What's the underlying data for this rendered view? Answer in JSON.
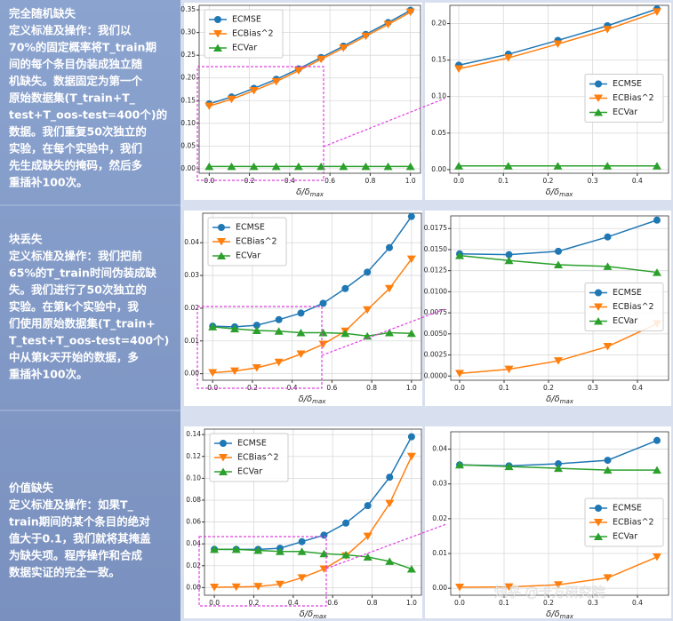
{
  "sections": [
    {
      "title": "完全随机缺失",
      "lines": [
        "定义标准及操作：我们以",
        "70%的固定概率将T_train期",
        "间的每个条目伪装成独立随",
        "机缺失。数据固定为第一个",
        "原始数据集(T_train+T_",
        "test+T_oos-test=400个)的",
        "数据。我们重复50次独立的",
        "实验，在每个实验中，我们",
        "先生成缺失的掩码，然后多",
        "重插补100次。"
      ]
    },
    {
      "title": "块丢失",
      "lines": [
        "定义标准及操作：我们把前",
        "65%的T_train时间伪装成缺",
        "失。我们进行了50次独立的",
        "实验。在第k个实验中，我",
        "们使用原始数据集(T_train+",
        "T_test+T_oos-test=400个)",
        "中从第k天开始的数据，多",
        "重插补100次。"
      ]
    },
    {
      "title": "价值缺失",
      "lines": [
        "定义标准及操作：如果T_",
        "train期间的某个条目的绝对",
        "值大于0.1，我们就将其掩盖",
        "为缺失项。程序操作和合成",
        "数据实证的完全一致。"
      ]
    }
  ],
  "watermark": "知乎 @卡方研究院",
  "chart_data": [
    {
      "type": "line",
      "x_label": "δ/δ",
      "x_label_sub": "max",
      "legend": "upper left",
      "grid": true,
      "x": [
        0,
        0.111,
        0.222,
        0.333,
        0.444,
        0.556,
        0.667,
        0.778,
        0.889,
        1.0
      ],
      "xlim": [
        -0.05,
        1.05
      ],
      "xticks": [
        {
          "value": 0,
          "label": "0.0"
        },
        0.2,
        0.4,
        0.6,
        0.8,
        {
          "value": 1,
          "label": "1.0"
        }
      ],
      "ylim": [
        -0.01,
        0.36
      ],
      "yticks": [
        {
          "value": 0,
          "label": "0.00"
        },
        0.05,
        {
          "value": 0.1,
          "label": "0.10"
        },
        0.15,
        {
          "value": 0.2,
          "label": "0.20"
        },
        0.25,
        {
          "value": 0.3,
          "label": "0.30"
        },
        0.35
      ],
      "series": [
        {
          "name": "ECMSE",
          "color": "#1f77b4",
          "marker": "circle",
          "values": [
            0.143,
            0.158,
            0.177,
            0.197,
            0.22,
            0.245,
            0.27,
            0.296,
            0.322,
            0.349
          ]
        },
        {
          "name": "ECBias^2",
          "color": "#ff7f0e",
          "marker": "triangle-down",
          "values": [
            0.138,
            0.153,
            0.172,
            0.192,
            0.216,
            0.241,
            0.266,
            0.292,
            0.318,
            0.345
          ]
        },
        {
          "name": "ECVar",
          "color": "#2ca02c",
          "marker": "triangle-up",
          "values": [
            0.005,
            0.005,
            0.005,
            0.005,
            0.005,
            0.005,
            0.005,
            0.005,
            0.005,
            0.005
          ]
        }
      ]
    },
    {
      "type": "line",
      "x_label": "δ/δ",
      "x_label_sub": "max",
      "legend": "center right",
      "grid": true,
      "x": [
        0,
        0.111,
        0.222,
        0.333,
        0.444
      ],
      "xlim": [
        -0.02,
        0.47
      ],
      "xticks": [
        {
          "value": 0,
          "label": "0.0"
        },
        0.1,
        0.2,
        0.3,
        0.4
      ],
      "ylim": [
        -0.005,
        0.225
      ],
      "yticks": [
        {
          "value": 0,
          "label": "0.00"
        },
        0.05,
        {
          "value": 0.1,
          "label": "0.10"
        },
        0.15,
        {
          "value": 0.2,
          "label": "0.20"
        }
      ],
      "series": [
        {
          "name": "ECMSE",
          "color": "#1f77b4",
          "marker": "circle",
          "values": [
            0.143,
            0.158,
            0.177,
            0.197,
            0.22
          ]
        },
        {
          "name": "ECBias^2",
          "color": "#ff7f0e",
          "marker": "triangle-down",
          "values": [
            0.138,
            0.153,
            0.172,
            0.192,
            0.216
          ]
        },
        {
          "name": "ECVar",
          "color": "#2ca02c",
          "marker": "triangle-up",
          "values": [
            0.005,
            0.005,
            0.005,
            0.005,
            0.005
          ]
        }
      ]
    },
    {
      "type": "line",
      "x_label": "δ/δ",
      "x_label_sub": "max",
      "legend": "upper left",
      "grid": true,
      "x": [
        0,
        0.111,
        0.222,
        0.333,
        0.444,
        0.556,
        0.667,
        0.778,
        0.889,
        1.0
      ],
      "xlim": [
        -0.05,
        1.05
      ],
      "xticks": [
        {
          "value": 0,
          "label": "0.0"
        },
        0.2,
        0.4,
        0.6,
        0.8,
        {
          "value": 1,
          "label": "1.0"
        }
      ],
      "ylim": [
        -0.002,
        0.049
      ],
      "yticks": [
        {
          "value": 0,
          "label": "0.00"
        },
        {
          "value": 0.01,
          "label": "0.01"
        },
        {
          "value": 0.02,
          "label": "0.02"
        },
        {
          "value": 0.03,
          "label": "0.03"
        },
        {
          "value": 0.04,
          "label": "0.04"
        }
      ],
      "series": [
        {
          "name": "ECMSE",
          "color": "#1f77b4",
          "marker": "circle",
          "values": [
            0.0145,
            0.0143,
            0.0148,
            0.0165,
            0.0185,
            0.0215,
            0.026,
            0.031,
            0.0385,
            0.048
          ]
        },
        {
          "name": "ECBias^2",
          "color": "#ff7f0e",
          "marker": "triangle-down",
          "values": [
            0.0003,
            0.0008,
            0.0018,
            0.0035,
            0.006,
            0.009,
            0.013,
            0.0195,
            0.026,
            0.035
          ]
        },
        {
          "name": "ECVar",
          "color": "#2ca02c",
          "marker": "triangle-up",
          "values": [
            0.0143,
            0.0137,
            0.0132,
            0.013,
            0.0125,
            0.0125,
            0.0123,
            0.0115,
            0.0125,
            0.0123
          ]
        }
      ]
    },
    {
      "type": "line",
      "x_label": "δ/δ",
      "x_label_sub": "max",
      "legend": "center right",
      "grid": true,
      "x": [
        0,
        0.111,
        0.222,
        0.333,
        0.444
      ],
      "xlim": [
        -0.02,
        0.47
      ],
      "xticks": [
        {
          "value": 0,
          "label": "0.0"
        },
        0.1,
        0.2,
        0.3,
        0.4
      ],
      "ylim": [
        -0.0005,
        0.019
      ],
      "yticks": [
        {
          "value": 0,
          "label": "0.0000"
        },
        0.0025,
        {
          "value": 0.005,
          "label": "0.0050"
        },
        0.0075,
        {
          "value": 0.01,
          "label": "0.0100"
        },
        0.0125,
        {
          "value": 0.015,
          "label": "0.0150"
        },
        0.0175
      ],
      "series": [
        {
          "name": "ECMSE",
          "color": "#1f77b4",
          "marker": "circle",
          "values": [
            0.0145,
            0.0144,
            0.0148,
            0.0165,
            0.0185
          ]
        },
        {
          "name": "ECBias^2",
          "color": "#ff7f0e",
          "marker": "triangle-down",
          "values": [
            0.0003,
            0.0008,
            0.0018,
            0.0035,
            0.0062
          ]
        },
        {
          "name": "ECVar",
          "color": "#2ca02c",
          "marker": "triangle-up",
          "values": [
            0.0143,
            0.0137,
            0.0132,
            0.013,
            0.0123
          ]
        }
      ]
    },
    {
      "type": "line",
      "x_label": "δ/δ",
      "x_label_sub": "max",
      "legend": "upper left",
      "grid": true,
      "x": [
        0,
        0.111,
        0.222,
        0.333,
        0.444,
        0.556,
        0.667,
        0.778,
        0.889,
        1.0
      ],
      "xlim": [
        -0.05,
        1.05
      ],
      "xticks": [
        {
          "value": 0,
          "label": "0.0"
        },
        0.2,
        0.4,
        0.6,
        0.8,
        {
          "value": 1,
          "label": "1.0"
        }
      ],
      "ylim": [
        -0.007,
        0.145
      ],
      "yticks": [
        {
          "value": 0,
          "label": "0.00"
        },
        0.02,
        0.04,
        0.06,
        0.08,
        {
          "value": 0.1,
          "label": "0.10"
        },
        0.12,
        0.14
      ],
      "series": [
        {
          "name": "ECMSE",
          "color": "#1f77b4",
          "marker": "circle",
          "values": [
            0.035,
            0.035,
            0.035,
            0.036,
            0.042,
            0.048,
            0.059,
            0.075,
            0.101,
            0.138
          ]
        },
        {
          "name": "ECBias^2",
          "color": "#ff7f0e",
          "marker": "triangle-down",
          "values": [
            0.0003,
            0.0005,
            0.001,
            0.003,
            0.009,
            0.017,
            0.029,
            0.047,
            0.077,
            0.12
          ]
        },
        {
          "name": "ECVar",
          "color": "#2ca02c",
          "marker": "triangle-up",
          "values": [
            0.035,
            0.035,
            0.034,
            0.033,
            0.033,
            0.031,
            0.03,
            0.028,
            0.024,
            0.017
          ]
        }
      ]
    },
    {
      "type": "line",
      "x_label": "δ/δ",
      "x_label_sub": "max",
      "legend": "center right",
      "grid": true,
      "x": [
        0,
        0.111,
        0.222,
        0.333,
        0.444
      ],
      "xlim": [
        -0.02,
        0.47
      ],
      "xticks": [
        {
          "value": 0,
          "label": "0.0"
        },
        0.1,
        0.2,
        0.3,
        0.4
      ],
      "ylim": [
        -0.002,
        0.045
      ],
      "yticks": [
        {
          "value": 0,
          "label": "0.00"
        },
        {
          "value": 0.01,
          "label": "0.01"
        },
        {
          "value": 0.02,
          "label": "0.02"
        },
        {
          "value": 0.03,
          "label": "0.03"
        },
        {
          "value": 0.04,
          "label": "0.04"
        }
      ],
      "series": [
        {
          "name": "ECMSE",
          "color": "#1f77b4",
          "marker": "circle",
          "values": [
            0.0355,
            0.0352,
            0.0358,
            0.0368,
            0.0425
          ]
        },
        {
          "name": "ECBias^2",
          "color": "#ff7f0e",
          "marker": "triangle-down",
          "values": [
            0.0003,
            0.0004,
            0.001,
            0.003,
            0.009
          ]
        },
        {
          "name": "ECVar",
          "color": "#2ca02c",
          "marker": "triangle-up",
          "values": [
            0.0355,
            0.035,
            0.0345,
            0.034,
            0.034
          ]
        }
      ]
    }
  ]
}
